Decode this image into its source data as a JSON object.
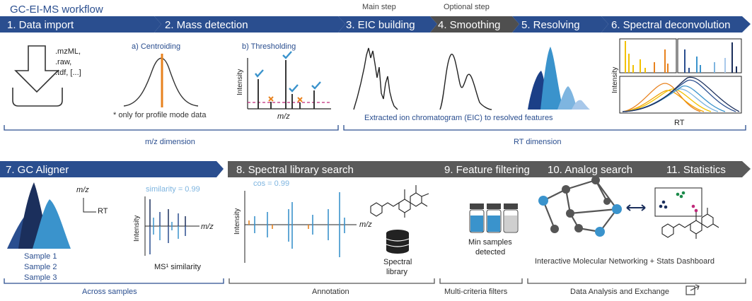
{
  "title": "GC-EI-MS workflow",
  "step_tags": {
    "main": "Main step",
    "optional": "Optional step"
  },
  "steps_row1": [
    "1. Data import",
    "2. Mass detection",
    "3. EIC building",
    "4. Smoothing",
    "5. Resolving",
    "6. Spectral deconvolution"
  ],
  "steps_row2": [
    "7. GC Aligner",
    "8. Spectral library search",
    "9. Feature filtering",
    "10. Analog search",
    "11. Statistics"
  ],
  "import_formats": [
    ".mzML,",
    ".raw,",
    ".tdf, [...]"
  ],
  "mass_detection": {
    "centroiding_label": "a) Centroiding",
    "thresholding_label": "b) Thresholding",
    "profile_note": "* only for profile mode data",
    "intensity_label": "Intensity",
    "mz_axis": "m/z"
  },
  "eic_caption": "Extracted ion chromatogram (EIC) to resolved features",
  "deconvolution": {
    "intensity_label": "Intensity",
    "rt_label": "RT"
  },
  "dimensions": {
    "mz": "m/z dimension",
    "rt": "RT dimension"
  },
  "aligner": {
    "mz_label": "m/z",
    "rt_label": "RT",
    "samples": [
      "Sample 1",
      "Sample 2",
      "Sample 3"
    ],
    "similarity": "similarity = 0.99",
    "intensity_label": "Intensity",
    "mz_axis": "m/z",
    "ms1_label": "MS¹ similarity"
  },
  "library_search": {
    "cos": "cos = 0.99",
    "intensity_label": "Intensity",
    "mz_axis": "m/z",
    "library_label": [
      "Spectral",
      "library"
    ]
  },
  "filtering": {
    "min_samples": [
      "Min samples",
      "detected"
    ]
  },
  "networking": {
    "caption": "Interactive Molecular Networking + Stats Dashboard"
  },
  "bottom_labels": {
    "across": "Across samples",
    "annotation": "Annotation",
    "multi": "Multi-criteria filters",
    "data_analysis": "Data Analysis and Exchange"
  },
  "colors": {
    "blue_dark": "#2a4e8f",
    "gray_dark": "#5a5a5a",
    "accent_blue": "#3a93cc",
    "orange": "#e8821e",
    "yellow": "#f2c100",
    "magenta": "#c0297a",
    "green": "#1b8a4a"
  }
}
